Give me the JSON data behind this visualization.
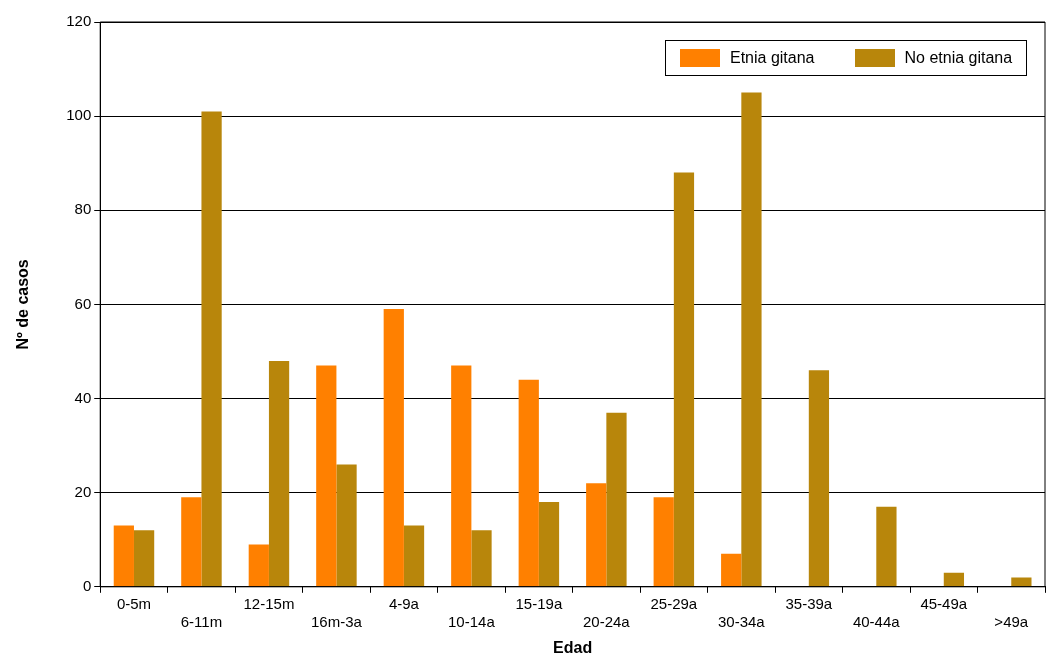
{
  "chart_data": {
    "type": "bar",
    "xlabel": "Edad",
    "ylabel": "Nº de casos",
    "categories": [
      "0-5m",
      "6-11m",
      "12-15m",
      "16m-3a",
      "4-9a",
      "10-14a",
      "15-19a",
      "20-24a",
      "25-29a",
      "30-34a",
      "35-39a",
      "40-44a",
      "45-49a",
      ">49a"
    ],
    "series": [
      {
        "name": "Etnia gitana",
        "color": "#ff8000",
        "values": [
          13,
          19,
          9,
          47,
          59,
          47,
          44,
          22,
          19,
          7,
          0,
          0,
          0,
          0
        ]
      },
      {
        "name": "No etnia gitana",
        "color": "#b8860b",
        "values": [
          12,
          101,
          48,
          26,
          13,
          12,
          18,
          37,
          88,
          105,
          46,
          17,
          3,
          2
        ]
      }
    ],
    "ylim": [
      0,
      120
    ],
    "yticks": [
      0,
      20,
      40,
      60,
      80,
      100,
      120
    ],
    "grid": "y",
    "legend": "top right"
  }
}
